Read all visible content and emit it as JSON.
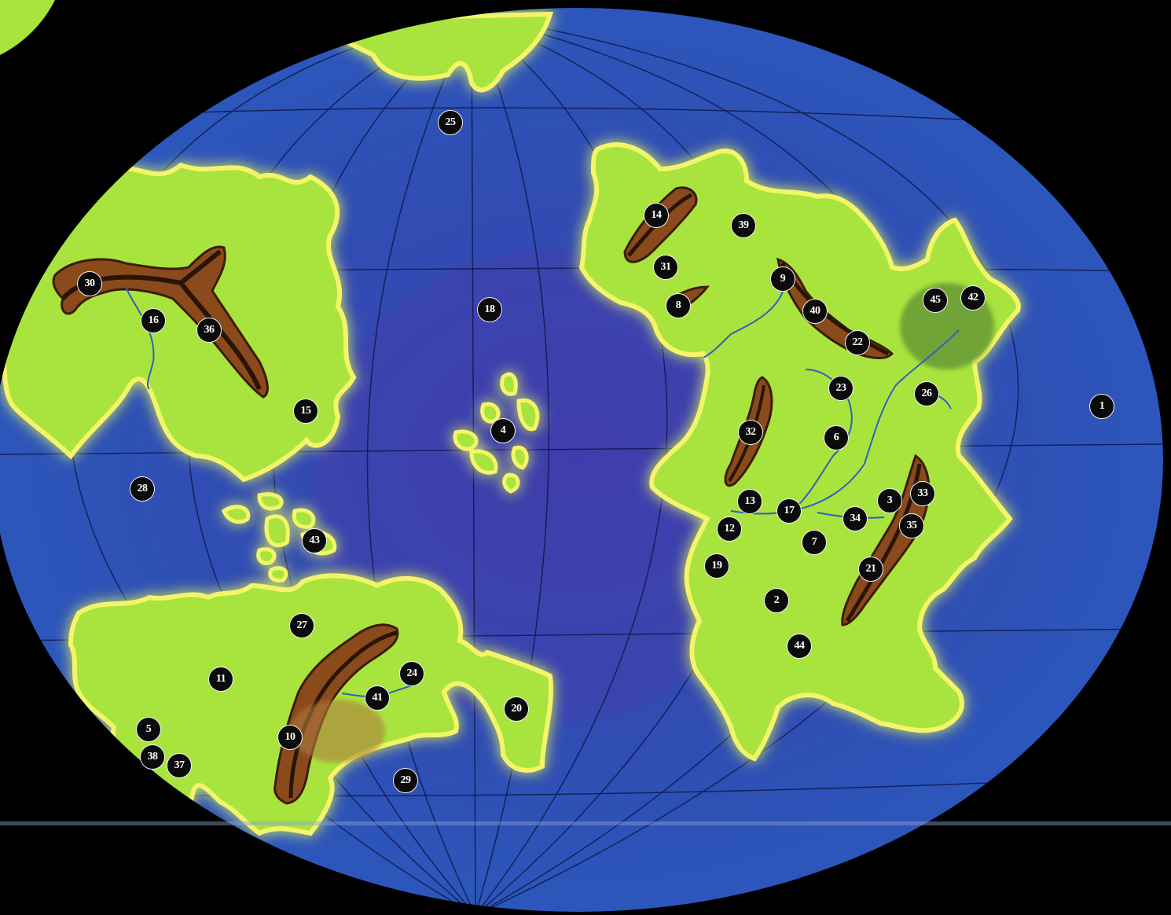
{
  "map": {
    "type": "fantasy world map",
    "colors": {
      "ocean": "#2f4fb4",
      "ocean_deep": "#4a3aa8",
      "land": "#a8e43c",
      "land_edge": "#f4f46a",
      "mountain": "#8a4a1c",
      "mountain_ridge": "#2a1406",
      "river": "#3060c0",
      "forest": "#5f8f34",
      "background": "#000000",
      "markers": "#0b0b0b"
    },
    "markers": [
      {
        "label": "1"
      },
      {
        "label": "2"
      },
      {
        "label": "3"
      },
      {
        "label": "4"
      },
      {
        "label": "5"
      },
      {
        "label": "6"
      },
      {
        "label": "7"
      },
      {
        "label": "8"
      },
      {
        "label": "9"
      },
      {
        "label": "10"
      },
      {
        "label": "11"
      },
      {
        "label": "12"
      },
      {
        "label": "13"
      },
      {
        "label": "14"
      },
      {
        "label": "15"
      },
      {
        "label": "16"
      },
      {
        "label": "17"
      },
      {
        "label": "18"
      },
      {
        "label": "19"
      },
      {
        "label": "20"
      },
      {
        "label": "21"
      },
      {
        "label": "22"
      },
      {
        "label": "23"
      },
      {
        "label": "24"
      },
      {
        "label": "25"
      },
      {
        "label": "26"
      },
      {
        "label": "27"
      },
      {
        "label": "28"
      },
      {
        "label": "29"
      },
      {
        "label": "30"
      },
      {
        "label": "31"
      },
      {
        "label": "32"
      },
      {
        "label": "33"
      },
      {
        "label": "34"
      },
      {
        "label": "35"
      },
      {
        "label": "36"
      },
      {
        "label": "37"
      },
      {
        "label": "38"
      },
      {
        "label": "39"
      },
      {
        "label": "40"
      },
      {
        "label": "41"
      },
      {
        "label": "42"
      },
      {
        "label": "43"
      },
      {
        "label": "44"
      },
      {
        "label": "45"
      }
    ]
  }
}
